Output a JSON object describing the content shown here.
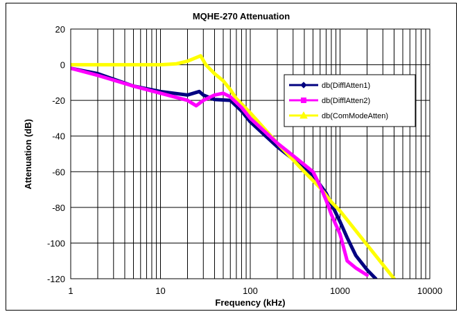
{
  "chart_data": {
    "type": "line",
    "title": "MQHE-270 Attenuation",
    "xlabel": "Frequency (kHz)",
    "ylabel": "Attenuation (dB)",
    "x_scale": "log",
    "xlim": [
      1,
      10000
    ],
    "ylim": [
      -120,
      20
    ],
    "x_ticks": [
      1,
      10,
      100,
      1000,
      10000
    ],
    "x_tick_labels": [
      "1",
      "10",
      "100",
      "1000",
      "10000"
    ],
    "y_ticks": [
      20,
      0,
      -20,
      -40,
      -60,
      -80,
      -100,
      -120
    ],
    "y_tick_labels": [
      "20",
      "0",
      "-20",
      "-40",
      "-60",
      "-80",
      "-100",
      "-120"
    ],
    "grid": true,
    "legend_position": "right",
    "series": [
      {
        "name": "db(DifflAtten1)",
        "color": "#000080",
        "marker": "diamond",
        "x": [
          1,
          2,
          5,
          10,
          20,
          27,
          30,
          40,
          60,
          80,
          100,
          200,
          300,
          500,
          700,
          1000,
          1200,
          1500,
          2000,
          2500
        ],
        "y": [
          -2,
          -5,
          -12,
          -15,
          -17,
          -15,
          -17,
          -19.5,
          -20,
          -26,
          -32,
          -46,
          -53,
          -62,
          -72,
          -88,
          -97,
          -107,
          -115,
          -120
        ]
      },
      {
        "name": "db(DifflAtten2)",
        "color": "#ff00ff",
        "marker": "square",
        "x": [
          1,
          2,
          5,
          10,
          20,
          25,
          30,
          40,
          50,
          60,
          80,
          100,
          200,
          300,
          500,
          600,
          700,
          800,
          1000,
          1200,
          1500,
          2000
        ],
        "y": [
          -2,
          -6,
          -12,
          -16,
          -20,
          -23,
          -20,
          -17,
          -16,
          -18,
          -24,
          -30,
          -44,
          -51,
          -60,
          -68,
          -76,
          -84,
          -95,
          -110,
          -114,
          -118
        ]
      },
      {
        "name": "db(ComModeAtten)",
        "color": "#ffff00",
        "marker": "triangle",
        "x": [
          1,
          2,
          5,
          10,
          15,
          20,
          25,
          28,
          32,
          40,
          50,
          60,
          70,
          80,
          100,
          200,
          400,
          600,
          800,
          1000,
          2000,
          4000
        ],
        "y": [
          0,
          0,
          0,
          0,
          0.5,
          2,
          4,
          5,
          0,
          -5,
          -9,
          -14,
          -19,
          -22,
          -27,
          -44,
          -60,
          -69,
          -77,
          -82,
          -101,
          -120
        ]
      }
    ]
  }
}
